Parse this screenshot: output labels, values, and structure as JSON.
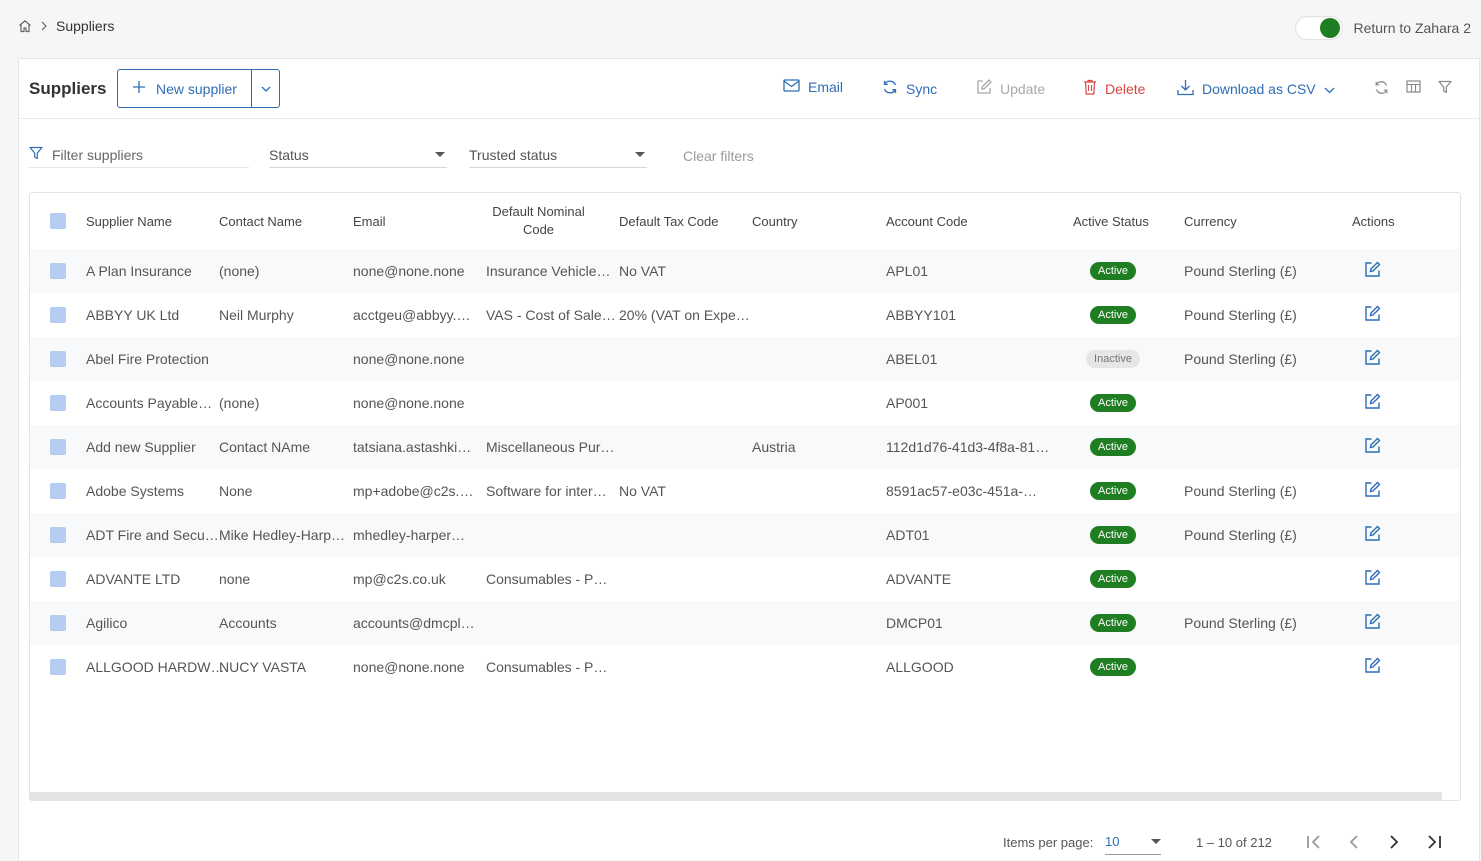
{
  "breadcrumb": {
    "current": "Suppliers"
  },
  "toggle": {
    "label": "Return to Zahara 2",
    "on": true
  },
  "toolbar": {
    "title": "Suppliers",
    "new_label": "New supplier",
    "email_label": "Email",
    "sync_label": "Sync",
    "update_label": "Update",
    "delete_label": "Delete",
    "download_label": "Download as CSV"
  },
  "filters": {
    "search_placeholder": "Filter suppliers",
    "status_label": "Status",
    "trusted_label": "Trusted status",
    "clear_label": "Clear filters"
  },
  "columns": {
    "name": "Supplier Name",
    "contact": "Contact Name",
    "email": "Email",
    "nominal": "Default Nominal Code",
    "tax": "Default Tax Code",
    "country": "Country",
    "account": "Account Code",
    "active": "Active Status",
    "currency": "Currency",
    "actions": "Actions"
  },
  "rows": [
    {
      "name": "A Plan Insurance",
      "contact": "(none)",
      "email": "none@none.none",
      "nominal": "Insurance Vehicle…",
      "tax": "No VAT",
      "country": "",
      "account": "APL01",
      "status": "Active",
      "currency": "Pound Sterling (£)"
    },
    {
      "name": "ABBYY UK Ltd",
      "contact": "Neil Murphy",
      "email": "acctgeu@abbyy.…",
      "nominal": "VAS - Cost of Sale…",
      "tax": "20% (VAT on Expe…",
      "country": "",
      "account": "ABBYY101",
      "status": "Active",
      "currency": "Pound Sterling (£)"
    },
    {
      "name": "Abel Fire Protection",
      "contact": "",
      "email": "none@none.none",
      "nominal": "",
      "tax": "",
      "country": "",
      "account": "ABEL01",
      "status": "Inactive",
      "currency": "Pound Sterling (£)"
    },
    {
      "name": "Accounts Payable…",
      "contact": "(none)",
      "email": "none@none.none",
      "nominal": "",
      "tax": "",
      "country": "",
      "account": "AP001",
      "status": "Active",
      "currency": ""
    },
    {
      "name": "Add new Supplier",
      "contact": "Contact NAme",
      "email": "tatsiana.astashki…",
      "nominal": "Miscellaneous Pur…",
      "tax": "",
      "country": "Austria",
      "account": "112d1d76-41d3-4f8a-81…",
      "status": "Active",
      "currency": ""
    },
    {
      "name": "Adobe Systems",
      "contact": "None",
      "email": "mp+adobe@c2s.…",
      "nominal": "Software for inter…",
      "tax": "No VAT",
      "country": "",
      "account": "8591ac57-e03c-451a-…",
      "status": "Active",
      "currency": "Pound Sterling (£)"
    },
    {
      "name": "ADT Fire and Secu…",
      "contact": "Mike Hedley-Harp…",
      "email": "mhedley-harper…",
      "nominal": "",
      "tax": "",
      "country": "",
      "account": "ADT01",
      "status": "Active",
      "currency": "Pound Sterling (£)"
    },
    {
      "name": "ADVANTE LTD",
      "contact": "none",
      "email": "mp@c2s.co.uk",
      "nominal": "Consumables - P…",
      "tax": "",
      "country": "",
      "account": "ADVANTE",
      "status": "Active",
      "currency": ""
    },
    {
      "name": "Agilico",
      "contact": "Accounts",
      "email": "accounts@dmcpl…",
      "nominal": "",
      "tax": "",
      "country": "",
      "account": "DMCP01",
      "status": "Active",
      "currency": "Pound Sterling (£)"
    },
    {
      "name": "ALLGOOD HARDW…",
      "contact": "NUCY VASTA",
      "email": "none@none.none",
      "nominal": "Consumables - P…",
      "tax": "",
      "country": "",
      "account": "ALLGOOD",
      "status": "Active",
      "currency": ""
    }
  ],
  "paginator": {
    "items_label": "Items per page:",
    "page_size": "10",
    "range": "1 – 10 of 212"
  },
  "colors": {
    "accent": "#2f6db5",
    "active": "#1f7d22",
    "delete": "#dd4444",
    "checkbox": "#b4cdf0"
  }
}
